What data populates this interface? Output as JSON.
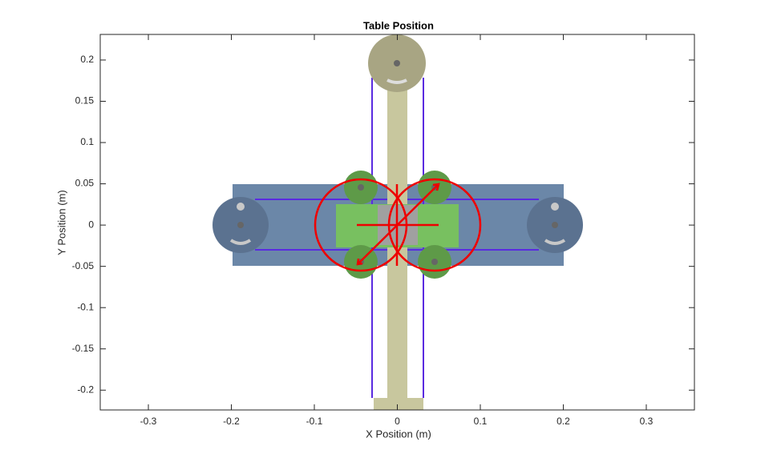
{
  "chart_data": {
    "type": "mechanism-plot",
    "title": "Table Position",
    "x_label": "X Position (m)",
    "y_label": "Y Position (m)",
    "xlim": [
      -0.358,
      0.358
    ],
    "ylim": [
      -0.224,
      0.231
    ],
    "xticks": [
      -0.3,
      -0.2,
      -0.1,
      0,
      0.1,
      0.2,
      0.3
    ],
    "yticks": [
      -0.2,
      -0.15,
      -0.1,
      -0.05,
      0,
      0.05,
      0.1,
      0.15,
      0.2
    ]
  }
}
